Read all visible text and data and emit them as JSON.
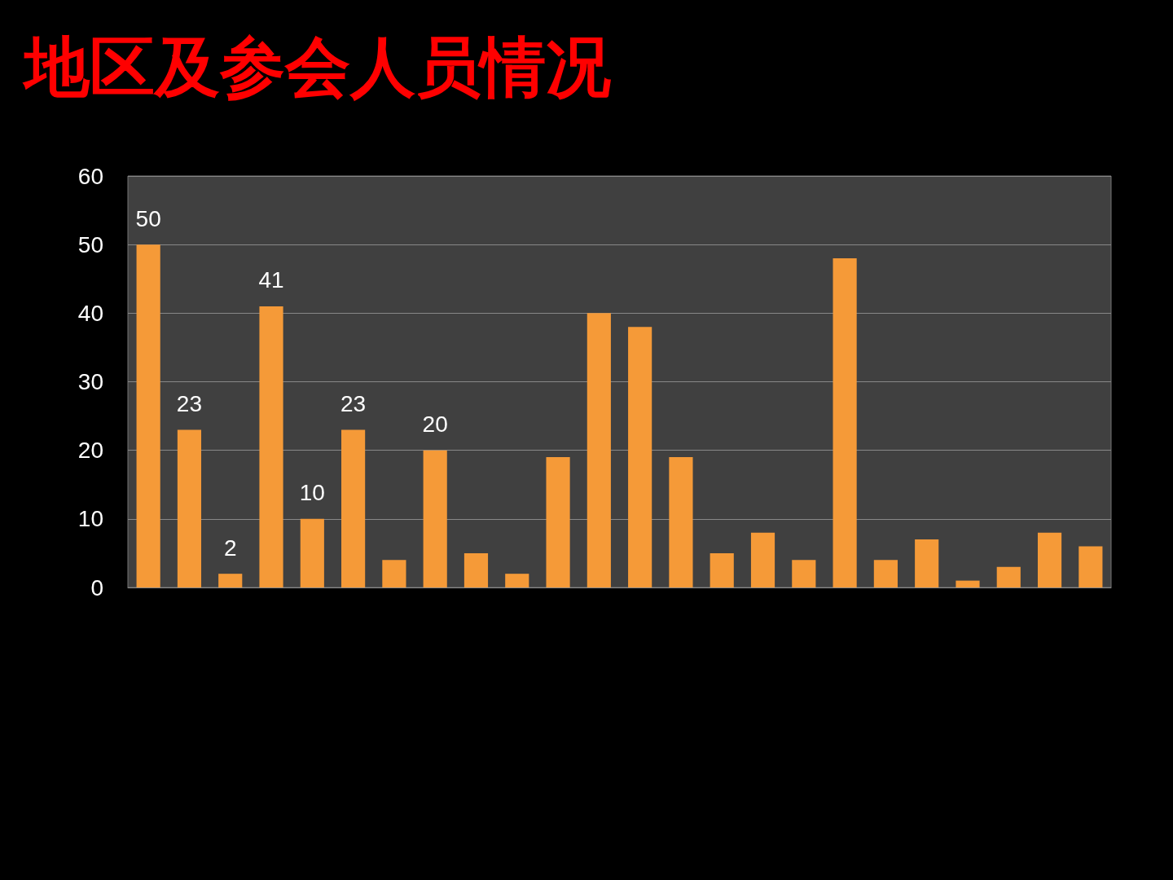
{
  "chart_data": {
    "type": "bar",
    "title": "地区及参会人员情况",
    "categories": [
      null,
      null,
      null,
      null,
      null,
      null,
      null,
      null,
      null,
      null,
      null,
      null,
      null,
      null,
      null,
      null,
      null,
      null,
      null,
      null,
      null,
      null,
      null,
      null
    ],
    "values": [
      50,
      23,
      2,
      41,
      10,
      23,
      4,
      20,
      5,
      2,
      19,
      40,
      38,
      19,
      5,
      8,
      4,
      48,
      4,
      7,
      1,
      3,
      8,
      6
    ],
    "value_labels": [
      "50",
      "23",
      "2",
      "41",
      "10",
      "23",
      null,
      "20",
      null,
      null,
      null,
      null,
      null,
      null,
      null,
      null,
      null,
      null,
      null,
      null,
      null,
      null,
      null,
      null
    ],
    "color": "#f59a38",
    "ylim": [
      0,
      60
    ],
    "yticks": [
      0,
      10,
      20,
      30,
      40,
      50,
      60
    ],
    "grid": "y"
  }
}
